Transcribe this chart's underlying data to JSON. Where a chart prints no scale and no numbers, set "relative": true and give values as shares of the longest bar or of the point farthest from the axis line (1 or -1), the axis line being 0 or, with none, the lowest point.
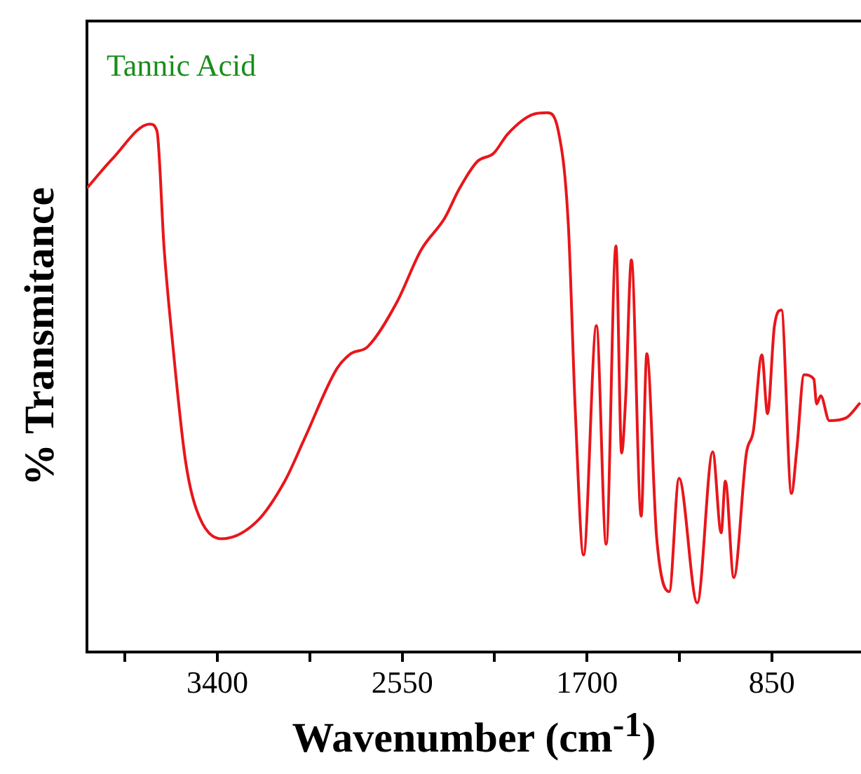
{
  "chart_data": {
    "type": "line",
    "title": "Tannic Acid",
    "xlabel": "Wavenumber (cm$^{-1}$)",
    "ylabel": "% Transmitance",
    "relative": true,
    "xlim": [
      4000,
      440
    ],
    "xticks": [
      {
        "value": 3825,
        "label": null
      },
      3400,
      {
        "value": 2975,
        "label": null
      },
      2550,
      {
        "value": 2125,
        "label": null
      },
      1700,
      {
        "value": 1275,
        "label": null
      },
      850
    ],
    "grid": false,
    "legend": false,
    "marker": "none",
    "line_style": "solid",
    "series": [
      {
        "color": "#e8161b",
        "x": [
          4000,
          3884,
          3710,
          3678,
          3645,
          3607,
          3548,
          3497,
          3381,
          3219,
          3090,
          3000,
          2851,
          2787,
          2709,
          2574,
          2464,
          2354,
          2290,
          2206,
          2129,
          2064,
          1948,
          1883,
          1832,
          1786,
          1754,
          1716,
          1657,
          1612,
          1567,
          1541,
          1522,
          1496,
          1451,
          1425,
          1380,
          1322,
          1277,
          1193,
          1122,
          1083,
          1064,
          1025,
          967,
          935,
          896,
          870,
          838,
          806,
          760,
          735,
          702,
          657,
          644,
          625,
          586,
          509,
          444
        ],
        "values": [
          0.86,
          0.914,
          0.979,
          0.966,
          0.748,
          0.577,
          0.358,
          0.265,
          0.21,
          0.242,
          0.317,
          0.395,
          0.525,
          0.553,
          0.566,
          0.649,
          0.745,
          0.805,
          0.857,
          0.909,
          0.925,
          0.961,
          0.997,
          1.0,
          0.966,
          0.792,
          0.447,
          0.18,
          0.605,
          0.2,
          0.753,
          0.369,
          0.473,
          0.727,
          0.252,
          0.553,
          0.213,
          0.112,
          0.322,
          0.091,
          0.371,
          0.221,
          0.317,
          0.138,
          0.369,
          0.41,
          0.551,
          0.442,
          0.605,
          0.634,
          0.294,
          0.377,
          0.514,
          0.506,
          0.46,
          0.475,
          0.429,
          0.434,
          0.462
        ]
      }
    ]
  }
}
